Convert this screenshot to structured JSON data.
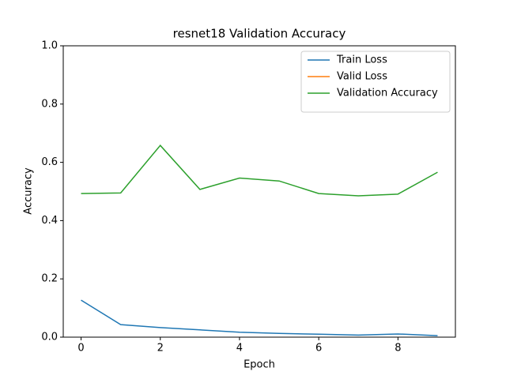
{
  "chart_data": {
    "type": "line",
    "title": "resnet18 Validation Accuracy",
    "x_label": "Epoch",
    "y_label": "Accuracy",
    "x": [
      0,
      1,
      2,
      3,
      4,
      5,
      6,
      7,
      8,
      9
    ],
    "series": [
      {
        "name": "Train Loss",
        "color": "#1f77b4",
        "values": [
          0.127,
          0.043,
          0.033,
          0.025,
          0.017,
          0.013,
          0.01,
          0.007,
          0.011,
          0.005
        ]
      },
      {
        "name": "Valid Loss",
        "color": "#ff7f0e",
        "values": [
          null,
          null,
          null,
          null,
          null,
          null,
          null,
          null,
          null,
          null
        ]
      },
      {
        "name": "Validation Accuracy",
        "color": "#2ca02c",
        "values": [
          0.493,
          0.495,
          0.658,
          0.507,
          0.546,
          0.536,
          0.493,
          0.485,
          0.491,
          0.566
        ]
      }
    ],
    "xlim": [
      -0.45,
      9.45
    ],
    "xticks": [
      0,
      2,
      4,
      6,
      8
    ],
    "ylim": [
      0,
      1
    ],
    "yticks": [
      {
        "value": 0,
        "label": "0.0"
      },
      0.2,
      0.4,
      0.6,
      0.8,
      {
        "value": 1,
        "label": "1.0"
      }
    ],
    "legend": "upper right"
  }
}
